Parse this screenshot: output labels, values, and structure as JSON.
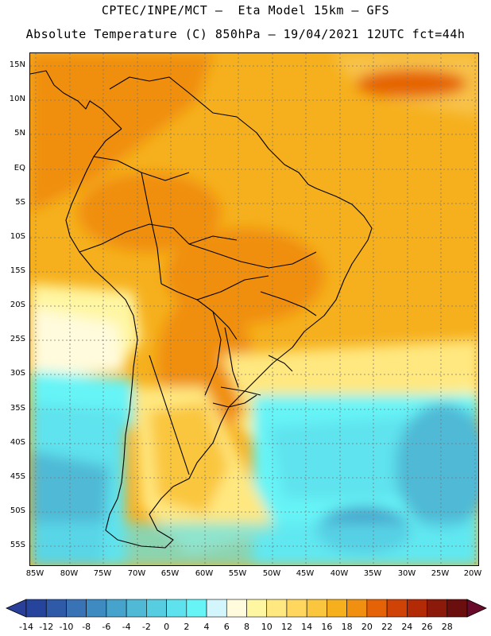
{
  "header": {
    "line1": "CPTEC/INPE/MCT –  Eta Model 15km – GFS",
    "line2": "Absolute Temperature (C) 850hPa – 19/04/2021 12UTC fct=44h"
  },
  "map": {
    "lat_labels": [
      "15N",
      "10N",
      "5N",
      "EQ",
      "5S",
      "10S",
      "15S",
      "20S",
      "25S",
      "30S",
      "35S",
      "40S",
      "45S",
      "50S",
      "55S"
    ],
    "lon_labels": [
      "85W",
      "80W",
      "75W",
      "70W",
      "65W",
      "60W",
      "55W",
      "50W",
      "45W",
      "40W",
      "35W",
      "30W",
      "25W",
      "20W"
    ],
    "extent": {
      "lon_min": -86,
      "lon_max": -19.5,
      "lat_min": -58,
      "lat_max": 17
    }
  },
  "colorbar": {
    "labels": [
      "-14",
      "-12",
      "-10",
      "-8",
      "-6",
      "-4",
      "-2",
      "0",
      "2",
      "4",
      "6",
      "8",
      "10",
      "12",
      "14",
      "16",
      "18",
      "20",
      "22",
      "24",
      "26",
      "28"
    ],
    "colors": [
      "#26449c",
      "#2f5aa8",
      "#3a72b6",
      "#3e8bc2",
      "#46a3cc",
      "#4fb9d6",
      "#56cde0",
      "#5ee3ee",
      "#66f4f7",
      "#d2f6fb",
      "#fffbdc",
      "#fff6a2",
      "#ffe880",
      "#ffd65e",
      "#fac63d",
      "#f6b01d",
      "#f08f10",
      "#e56306",
      "#cf4306",
      "#b22a06",
      "#8c1a0a",
      "#6a0e0e"
    ],
    "left_arrow": "#2a3f9a",
    "right_arrow": "#6a0a2a"
  }
}
